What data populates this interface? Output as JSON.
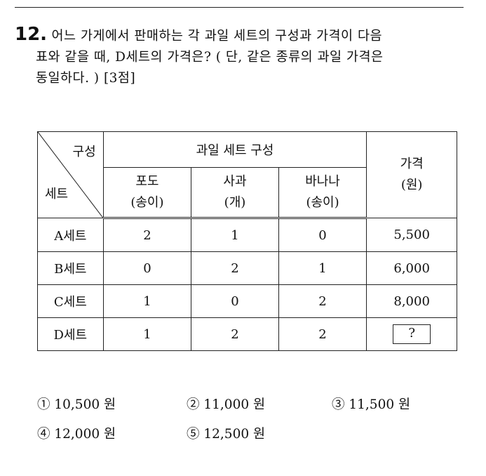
{
  "question": {
    "number": "12.",
    "line1": "어느 가게에서 판매하는 각 과일 세트의 구성과 가격이 다음",
    "line2": "표와 같을 때, D세트의 가격은? ( 단, 같은 종류의 과일 가격은",
    "line3": "동일하다. ) [3점]"
  },
  "table": {
    "corner_top": "구성",
    "corner_bottom": "세트",
    "group_header": "과일 세트 구성",
    "price_header": "가격",
    "price_unit": "(원)",
    "columns": [
      {
        "name": "포도",
        "unit": "(송이)"
      },
      {
        "name": "사과",
        "unit": "(개)"
      },
      {
        "name": "바나나",
        "unit": "(송이)"
      }
    ],
    "rows": [
      {
        "set": "A세트",
        "values": [
          "2",
          "1",
          "0"
        ],
        "price": "5,500"
      },
      {
        "set": "B세트",
        "values": [
          "0",
          "2",
          "1"
        ],
        "price": "6,000"
      },
      {
        "set": "C세트",
        "values": [
          "1",
          "0",
          "2"
        ],
        "price": "8,000"
      },
      {
        "set": "D세트",
        "values": [
          "1",
          "2",
          "2"
        ],
        "price": "?"
      }
    ]
  },
  "choices": [
    "① 10,500 원",
    "② 11,000 원",
    "③ 11,500 원",
    "④ 12,000 원",
    "⑤ 12,500 원"
  ]
}
